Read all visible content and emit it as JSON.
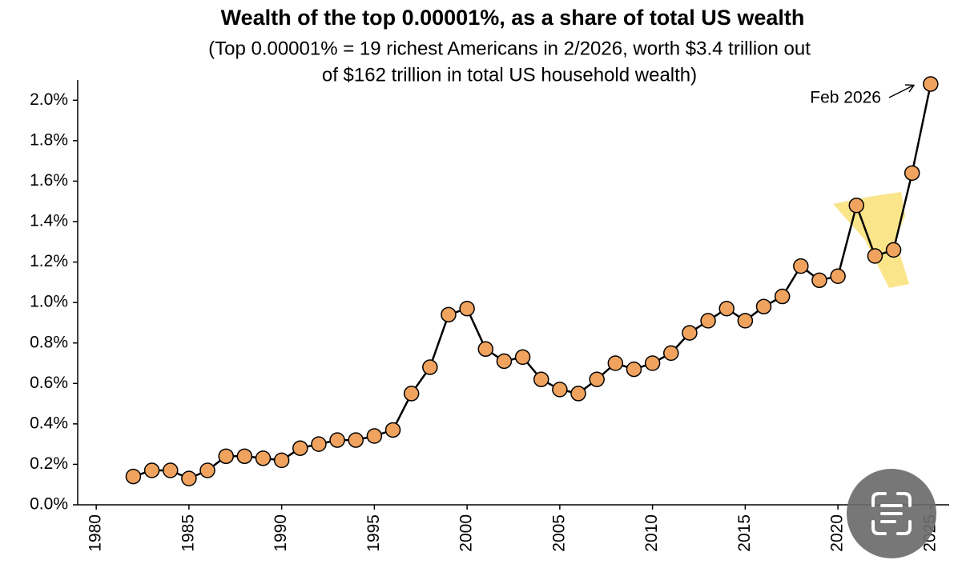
{
  "chart_data": {
    "type": "line",
    "title": "Wealth of the top 0.00001%, as a share of total US wealth",
    "subtitle": [
      "(Top 0.00001% = 19 richest Americans in 2/2026, worth $3.4 trillion out",
      "of $162 trillion in total US household wealth)"
    ],
    "annotation": "Feb 2026",
    "x": [
      1982,
      1983,
      1984,
      1985,
      1986,
      1987,
      1988,
      1989,
      1990,
      1991,
      1992,
      1993,
      1994,
      1995,
      1996,
      1997,
      1998,
      1999,
      2000,
      2001,
      2002,
      2003,
      2004,
      2005,
      2006,
      2007,
      2008,
      2009,
      2010,
      2011,
      2012,
      2013,
      2014,
      2015,
      2016,
      2017,
      2018,
      2019,
      2020,
      2021,
      2022,
      2023,
      2024,
      2025
    ],
    "values": [
      0.14,
      0.17,
      0.17,
      0.13,
      0.17,
      0.24,
      0.24,
      0.23,
      0.22,
      0.28,
      0.3,
      0.32,
      0.32,
      0.34,
      0.37,
      0.55,
      0.68,
      0.94,
      0.97,
      0.77,
      0.71,
      0.73,
      0.62,
      0.57,
      0.55,
      0.62,
      0.7,
      0.67,
      0.7,
      0.75,
      0.85,
      0.91,
      0.97,
      0.91,
      0.98,
      1.03,
      1.18,
      1.11,
      1.13,
      1.48,
      1.23,
      1.26,
      1.64,
      2.08
    ],
    "color": "#f0a35e",
    "xlim": [
      1979,
      2026
    ],
    "xticks": [
      1980,
      1985,
      1990,
      1995,
      2000,
      2005,
      2010,
      2015,
      2020,
      2025
    ],
    "ylim": [
      0,
      2.1
    ],
    "yticks": [
      {
        "value": 0,
        "label": "0.0%"
      },
      {
        "value": 0.2,
        "label": "0.2%"
      },
      {
        "value": 0.4,
        "label": "0.4%"
      },
      {
        "value": 0.6,
        "label": "0.6%"
      },
      {
        "value": 0.8,
        "label": "0.8%"
      },
      {
        "value": 1.0,
        "label": "1.0%"
      },
      {
        "value": 1.2,
        "label": "1.2%"
      },
      {
        "value": 1.4,
        "label": "1.4%"
      },
      {
        "value": 1.6,
        "label": "1.6%"
      },
      {
        "value": 1.8,
        "label": "1.8%"
      },
      {
        "value": 2.0,
        "label": "2.0%"
      }
    ]
  }
}
